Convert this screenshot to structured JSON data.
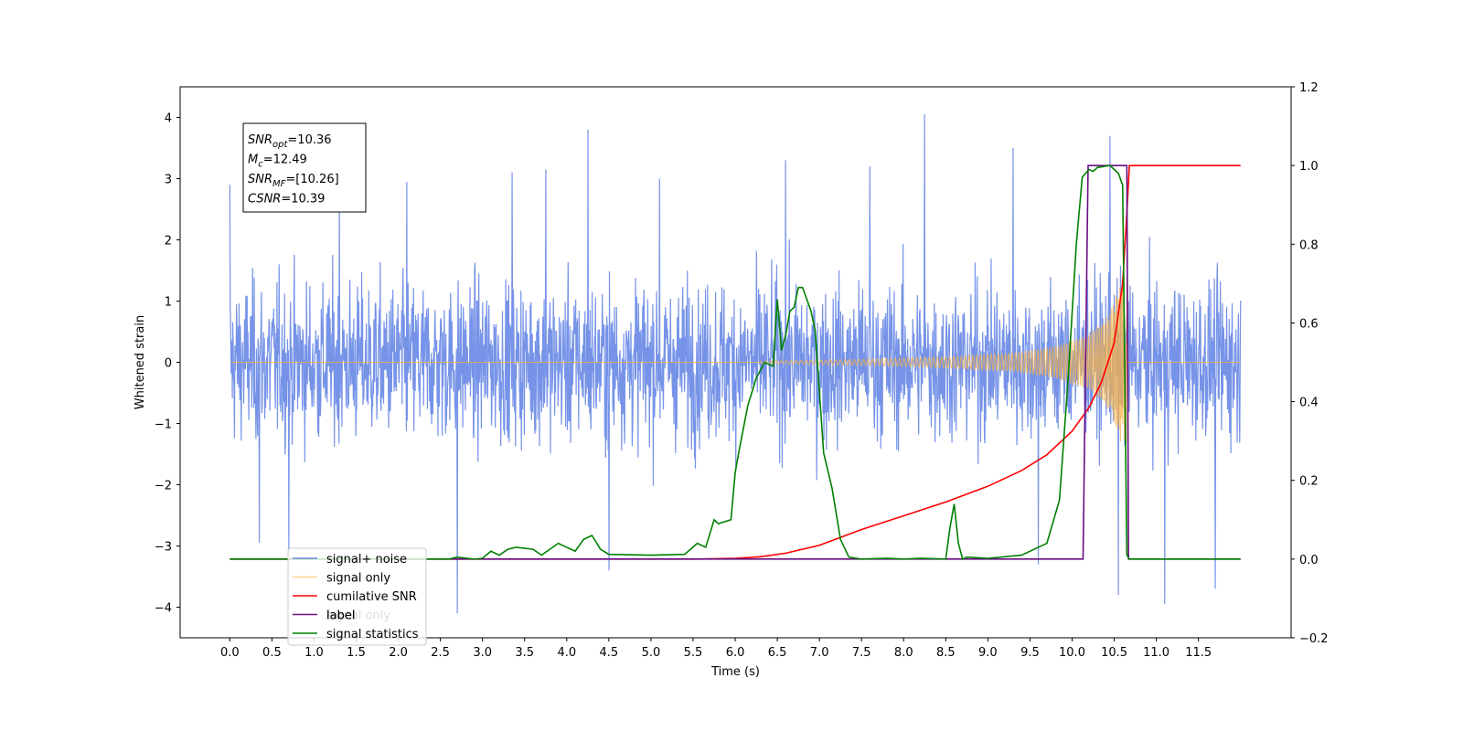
{
  "chart_data": {
    "type": "line",
    "title": "",
    "xlabel": "Time (s)",
    "ylabel_left": "Whitened strain",
    "ylabel_right": "",
    "xlim": [
      -0.59,
      12.6
    ],
    "ylim_left": [
      -4.5,
      4.5
    ],
    "ylim_right": [
      -0.2,
      1.2
    ],
    "x_ticks": [
      "0.0",
      "0.5",
      "1.0",
      "1.5",
      "2.0",
      "2.5",
      "3.0",
      "3.5",
      "4.0",
      "4.5",
      "5.0",
      "5.5",
      "6.0",
      "6.5",
      "7.0",
      "7.5",
      "8.0",
      "8.5",
      "9.0",
      "9.5",
      "10.0",
      "10.5",
      "11.0",
      "11.5"
    ],
    "y_ticks_left": [
      "4",
      "3",
      "2",
      "1",
      "0",
      "−1",
      "−2",
      "−3",
      "−4"
    ],
    "y_ticks_right": [
      "1.2",
      "1.0",
      "0.8",
      "0.6",
      "0.4",
      "0.2",
      "0.0",
      "−0.2"
    ],
    "grid": false,
    "annotation": {
      "lines": [
        {
          "sym": "SNR",
          "sub": "opt",
          "value": "=10.36"
        },
        {
          "sym": "M",
          "sub": "c",
          "value": "=12.49"
        },
        {
          "sym": "SNR",
          "sub": "MF",
          "value": "=[10.26]"
        },
        {
          "sym": "CSNR",
          "sub": "",
          "value": "=10.39"
        }
      ]
    },
    "legend": {
      "position": "lower-left",
      "entries": [
        "signal+ noise",
        "signal only",
        "cumilative SNR",
        "label",
        "signal statistics"
      ],
      "hidden_entry": "signal only"
    },
    "series": [
      {
        "name": "signal+ noise",
        "axis": "left",
        "color": "#6a8ae6",
        "kind": "noise",
        "x_range": [
          0,
          12.0
        ],
        "amplitude_range": [
          -4.1,
          4.05
        ],
        "peaks": [
          [
            0.0,
            2.9
          ],
          [
            0.35,
            -2.95
          ],
          [
            0.7,
            -3.1
          ],
          [
            1.3,
            2.85
          ],
          [
            2.1,
            2.95
          ],
          [
            2.7,
            -4.1
          ],
          [
            3.35,
            3.1
          ],
          [
            3.75,
            3.15
          ],
          [
            4.25,
            3.8
          ],
          [
            4.5,
            -3.4
          ],
          [
            5.1,
            3.0
          ],
          [
            6.6,
            3.3
          ],
          [
            7.6,
            3.2
          ],
          [
            8.25,
            4.05
          ],
          [
            9.3,
            3.5
          ],
          [
            9.6,
            -3.3
          ],
          [
            10.45,
            3.7
          ],
          [
            10.55,
            -3.8
          ],
          [
            11.1,
            -3.95
          ],
          [
            11.7,
            -3.7
          ]
        ]
      },
      {
        "name": "signal only",
        "axis": "left",
        "color": "#f5b14a",
        "kind": "chirp",
        "x_start": 6.3,
        "x_merger": 10.65,
        "amplitude_points": [
          [
            6.3,
            0.02
          ],
          [
            7.5,
            0.05
          ],
          [
            8.5,
            0.09
          ],
          [
            9.3,
            0.15
          ],
          [
            9.8,
            0.26
          ],
          [
            10.2,
            0.45
          ],
          [
            10.45,
            0.8
          ],
          [
            10.6,
            1.4
          ],
          [
            10.65,
            1.5
          ],
          [
            10.66,
            0.0
          ],
          [
            12.0,
            0.0
          ]
        ]
      },
      {
        "name": "cumilative SNR",
        "axis": "right",
        "color": "#ff0000",
        "x": [
          0,
          5.5,
          6.0,
          6.3,
          6.6,
          7.0,
          7.5,
          8.0,
          8.5,
          9.0,
          9.4,
          9.7,
          10.0,
          10.2,
          10.35,
          10.5,
          10.6,
          10.65,
          10.68,
          12.0
        ],
        "y": [
          0,
          0,
          0.002,
          0.006,
          0.015,
          0.035,
          0.075,
          0.11,
          0.145,
          0.185,
          0.225,
          0.265,
          0.325,
          0.385,
          0.45,
          0.55,
          0.7,
          0.88,
          1.0,
          1.0
        ]
      },
      {
        "name": "label",
        "axis": "right",
        "color": "#6a0d83",
        "x": [
          0,
          10.13,
          10.19,
          10.65,
          10.67,
          12.0
        ],
        "y": [
          0,
          0,
          1.0,
          1.0,
          0,
          0
        ]
      },
      {
        "name": "signal statistics",
        "axis": "right",
        "color": "#008000",
        "x": [
          0,
          2.6,
          2.7,
          2.9,
          3.0,
          3.1,
          3.2,
          3.3,
          3.4,
          3.6,
          3.7,
          3.9,
          4.0,
          4.1,
          4.2,
          4.3,
          4.4,
          4.5,
          5.0,
          5.4,
          5.55,
          5.65,
          5.75,
          5.8,
          5.95,
          6.0,
          6.05,
          6.15,
          6.25,
          6.35,
          6.45,
          6.5,
          6.55,
          6.6,
          6.65,
          6.7,
          6.75,
          6.8,
          6.9,
          6.95,
          7.05,
          7.15,
          7.25,
          7.35,
          7.5,
          7.8,
          8.0,
          8.2,
          8.5,
          8.55,
          8.6,
          8.65,
          8.7,
          8.75,
          9.0,
          9.4,
          9.6,
          9.7,
          9.85,
          9.95,
          10.05,
          10.12,
          10.2,
          10.25,
          10.3,
          10.45,
          10.55,
          10.6,
          10.65,
          10.68,
          10.72,
          12.0
        ],
        "y": [
          0,
          0,
          0.005,
          0.0,
          0.002,
          0.02,
          0.01,
          0.025,
          0.03,
          0.025,
          0.01,
          0.04,
          0.03,
          0.02,
          0.05,
          0.06,
          0.025,
          0.012,
          0.01,
          0.012,
          0.04,
          0.03,
          0.1,
          0.09,
          0.1,
          0.22,
          0.28,
          0.39,
          0.46,
          0.5,
          0.49,
          0.66,
          0.53,
          0.57,
          0.63,
          0.64,
          0.69,
          0.69,
          0.63,
          0.58,
          0.27,
          0.18,
          0.05,
          0.005,
          0.0,
          0.002,
          0.0,
          0.002,
          0.0,
          0.08,
          0.14,
          0.04,
          0.0,
          0.005,
          0.002,
          0.01,
          0.03,
          0.04,
          0.15,
          0.45,
          0.8,
          0.97,
          0.99,
          0.985,
          0.995,
          1.0,
          0.98,
          0.95,
          0.01,
          0.0,
          0.0,
          0.0
        ]
      }
    ]
  }
}
